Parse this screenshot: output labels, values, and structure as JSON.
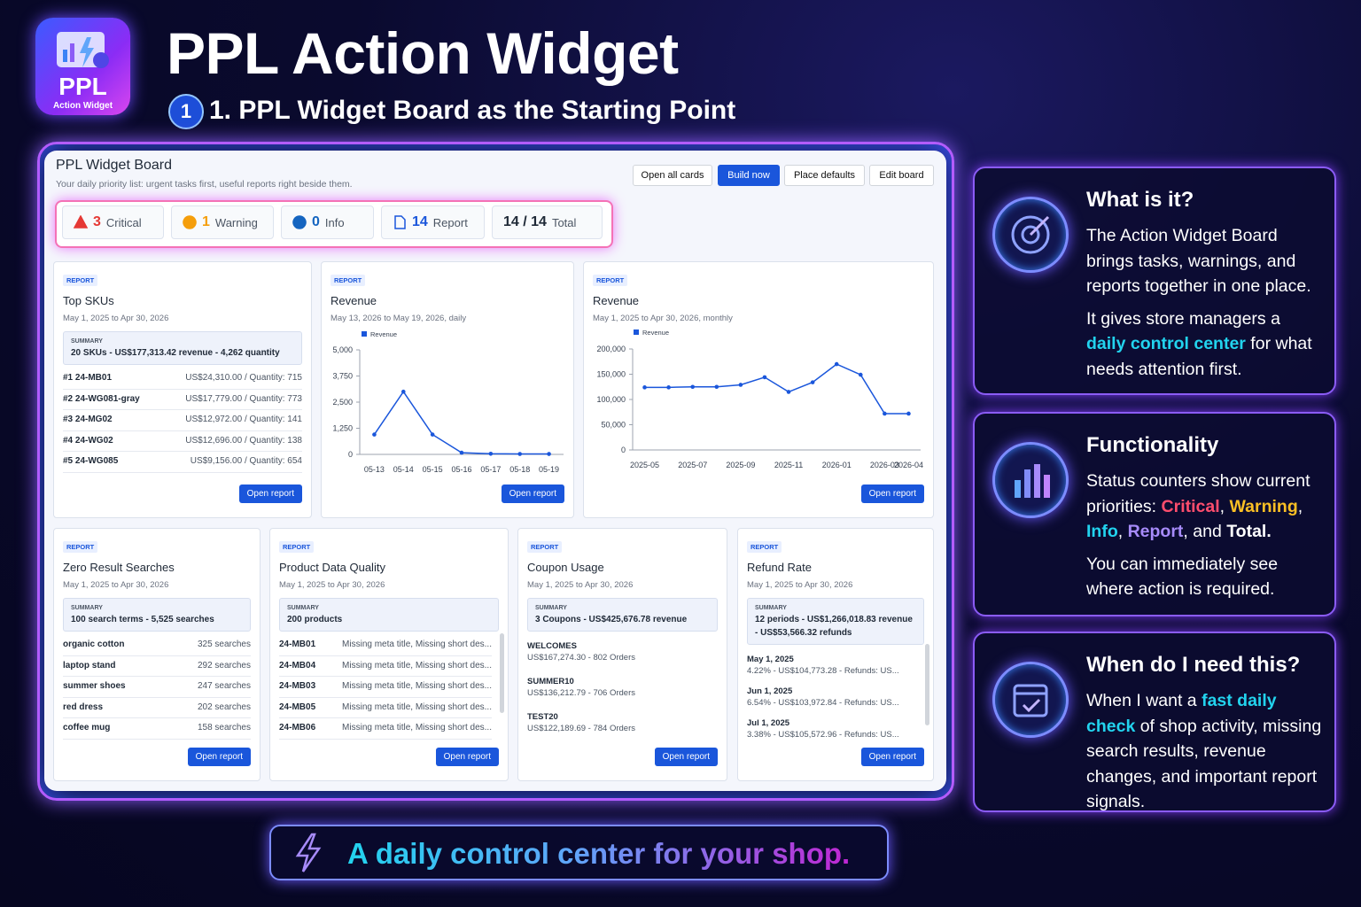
{
  "header": {
    "logo_title": "PPL",
    "logo_subtitle": "Action Widget",
    "title": "PPL Action Widget",
    "step_number": "1",
    "step_title": "1. PPL Widget Board as the Starting Point"
  },
  "board": {
    "title": "PPL Widget Board",
    "subtitle": "Your daily priority list: urgent tasks first, useful reports right beside them.",
    "buttons": [
      "Open all cards",
      "Build now",
      "Place defaults",
      "Edit board"
    ],
    "counters": [
      {
        "count": 3,
        "label": "Critical",
        "color": "#e53935"
      },
      {
        "count": 1,
        "label": "Warning",
        "color": "#f59e0b"
      },
      {
        "count": 0,
        "label": "Info",
        "color": "#1565c0"
      },
      {
        "count": 14,
        "label": "Report",
        "color": "#1a56db"
      },
      {
        "count": "14 / 14",
        "label": "Total",
        "color": "#1f2937"
      }
    ]
  },
  "cards": [
    {
      "tag": "REPORT",
      "title": "Top SKUs",
      "date": "May 1, 2025 to Apr 30, 2026",
      "summary_label": "SUMMARY",
      "summary": "20 SKUs - US$177,313.42 revenue - 4,262 quantity",
      "rows": [
        [
          "#1 24-MB01",
          "US$24,310.00 / Quantity: 715"
        ],
        [
          "#2 24-WG081-gray",
          "US$17,779.00 / Quantity: 773"
        ],
        [
          "#3 24-MG02",
          "US$12,972.00 / Quantity: 141"
        ],
        [
          "#4 24-WG02",
          "US$12,696.00 / Quantity: 138"
        ],
        [
          "#5 24-WG085",
          "US$9,156.00 / Quantity: 654"
        ]
      ],
      "button": "Open report"
    },
    {
      "tag": "REPORT",
      "title": "Revenue",
      "date": "May 13, 2026 to May 19, 2026, daily",
      "chart": {
        "type": "line",
        "x": [
          "05-13",
          "05-14",
          "05-15",
          "05-16",
          "05-17",
          "05-18",
          "05-19"
        ],
        "series": [
          {
            "name": "Revenue",
            "color": "#1a56db",
            "values": [
              950,
              3000,
              950,
              80,
              30,
              20,
              20
            ]
          }
        ],
        "ylim": [
          0,
          5000
        ],
        "yticks": [
          0,
          {
            "value": 1250,
            "label": "1,250"
          },
          {
            "value": 2500,
            "label": "2,500"
          },
          {
            "value": 3750,
            "label": "3,750"
          },
          {
            "value": 5000,
            "label": "5,000"
          }
        ],
        "grid": false
      },
      "button": "Open report"
    },
    {
      "tag": "REPORT",
      "title": "Revenue",
      "date": "May 1, 2025 to Apr 30, 2026, monthly",
      "chart": {
        "type": "line",
        "x": [
          "2025-05",
          null,
          "2025-07",
          null,
          "2025-09",
          null,
          "2025-11",
          null,
          "2026-01",
          null,
          "2026-03",
          "2026-04"
        ],
        "series": [
          {
            "name": "Revenue",
            "color": "#1a56db",
            "values": [
              124000,
              124000,
              125000,
              125000,
              129000,
              144000,
              115000,
              134000,
              170000,
              149000,
              72000,
              72000
            ]
          }
        ],
        "ylim": [
          0,
          200000
        ],
        "yticks": [
          0,
          {
            "value": 50000,
            "label": "50,000"
          },
          {
            "value": 100000,
            "label": "100,000"
          },
          {
            "value": 150000,
            "label": "150,000"
          },
          {
            "value": 200000,
            "label": "200,000"
          }
        ],
        "grid": false
      },
      "button": "Open report"
    },
    {
      "tag": "REPORT",
      "title": "Zero Result Searches",
      "date": "May 1, 2025 to Apr 30, 2026",
      "summary_label": "SUMMARY",
      "summary": "100 search terms - 5,525 searches",
      "rows": [
        [
          "organic cotton",
          "325 searches"
        ],
        [
          "laptop stand",
          "292 searches"
        ],
        [
          "summer shoes",
          "247 searches"
        ],
        [
          "red dress",
          "202 searches"
        ],
        [
          "coffee mug",
          "158 searches"
        ]
      ],
      "button": "Open report"
    },
    {
      "tag": "REPORT",
      "title": "Product Data Quality",
      "date": "May 1, 2025 to Apr 30, 2026",
      "summary_label": "SUMMARY",
      "summary": "200 products",
      "rows": [
        [
          "24-MB01",
          "Missing meta title, Missing short des..."
        ],
        [
          "24-MB04",
          "Missing meta title, Missing short des..."
        ],
        [
          "24-MB03",
          "Missing meta title, Missing short des..."
        ],
        [
          "24-MB05",
          "Missing meta title, Missing short des..."
        ],
        [
          "24-MB06",
          "Missing meta title, Missing short des..."
        ]
      ],
      "button": "Open report"
    },
    {
      "tag": "REPORT",
      "title": "Coupon Usage",
      "date": "May 1, 2025 to Apr 30, 2026",
      "summary_label": "SUMMARY",
      "summary": "3 Coupons - US$425,676.78 revenue",
      "items": [
        [
          "WELCOMES",
          "US$167,274.30 - 802 Orders"
        ],
        [
          "SUMMER10",
          "US$136,212.79 - 706 Orders"
        ],
        [
          "TEST20",
          "US$122,189.69 - 784 Orders"
        ]
      ],
      "button": "Open report"
    },
    {
      "tag": "REPORT",
      "title": "Refund Rate",
      "date": "May 1, 2025 to Apr 30, 2026",
      "summary_label": "SUMMARY",
      "summary": "12 periods - US$1,266,018.83 revenue - US$53,566.32 refunds",
      "items": [
        [
          "May 1, 2025",
          "4.22% - US$104,773.28 - Refunds: US..."
        ],
        [
          "Jun 1, 2025",
          "6.54% - US$103,972.84 - Refunds: US..."
        ],
        [
          "Jul 1, 2025",
          "3.38% - US$105,572.96 - Refunds: US..."
        ]
      ],
      "button": "Open report"
    }
  ],
  "panels": [
    {
      "title": "What is it?",
      "paragraphs": [
        [
          "The Action Widget Board brings tasks, warnings, and reports together in one place."
        ],
        [
          "It gives store managers a ",
          {
            "text": "daily control center",
            "color": "#22d3ee"
          },
          " for what needs attention first."
        ]
      ]
    },
    {
      "title": "Functionality",
      "paragraphs": [
        [
          "Status counters show current priorities: ",
          {
            "text": "Critical",
            "color": "#ff4d6d"
          },
          ", ",
          {
            "text": "Warning",
            "color": "#fbbf24"
          },
          ", ",
          {
            "text": "Info",
            "color": "#22d3ee"
          },
          ", ",
          {
            "text": "Report",
            "color": "#a78bfa"
          },
          ", and ",
          {
            "text": "Total.",
            "color": "#ffffff"
          }
        ],
        [
          "You can immediately see where action is required."
        ]
      ]
    },
    {
      "title": "When do I need this?",
      "paragraphs": [
        [
          "When I want a ",
          {
            "text": "fast daily check",
            "color": "#22d3ee"
          },
          " of shop activity, missing search results, revenue changes, and important report signals."
        ]
      ]
    }
  ],
  "footer": {
    "tagline": "A daily control center for your shop."
  }
}
